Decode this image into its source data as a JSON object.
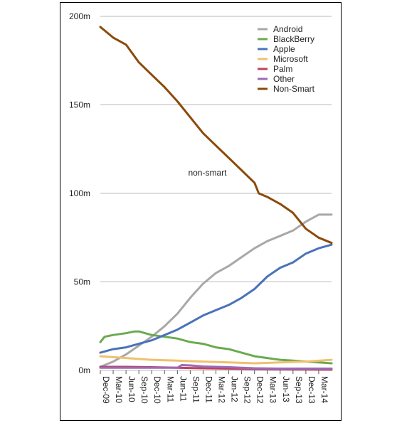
{
  "chart_data": {
    "type": "line",
    "title": "",
    "xlabel": "",
    "ylabel": "",
    "ylim": [
      0,
      200
    ],
    "y_unit_suffix": "m",
    "yticks": [
      0,
      50,
      100,
      150,
      200
    ],
    "ytick_labels": [
      "0m",
      "50m",
      "100m",
      "150m",
      "200m"
    ],
    "grid": true,
    "legend_position": "top-right",
    "x_tick_labels": [
      "Dec-09",
      "Mar-10",
      "Jun-10",
      "Sep-10",
      "Dec-10",
      "Mar-11",
      "Jun-11",
      "Sep-11",
      "Dec-11",
      "Mar-12",
      "Jun-12",
      "Sep-12",
      "Dec-12",
      "Mar-13",
      "Jun-13",
      "Sep-13",
      "Dec-13",
      "Mar-14"
    ],
    "x_tick_months": [
      0,
      3,
      6,
      9,
      12,
      15,
      18,
      21,
      24,
      27,
      30,
      33,
      36,
      39,
      42,
      45,
      48,
      51
    ],
    "x_range_months": [
      0,
      54
    ],
    "annotations": [
      {
        "text": "non-smart",
        "x_month": 25,
        "y": 110
      }
    ],
    "series": [
      {
        "name": "Android",
        "color": "#a8a8a8",
        "points": [
          [
            0,
            2
          ],
          [
            3,
            5
          ],
          [
            6,
            9
          ],
          [
            9,
            14
          ],
          [
            12,
            19
          ],
          [
            15,
            25
          ],
          [
            18,
            32
          ],
          [
            21,
            41
          ],
          [
            24,
            49
          ],
          [
            27,
            55
          ],
          [
            30,
            59
          ],
          [
            33,
            64
          ],
          [
            36,
            69
          ],
          [
            39,
            73
          ],
          [
            42,
            76
          ],
          [
            45,
            79
          ],
          [
            48,
            84
          ],
          [
            51,
            88
          ],
          [
            54,
            88
          ]
        ]
      },
      {
        "name": "BlackBerry",
        "color": "#6aaa4f",
        "points": [
          [
            0,
            16
          ],
          [
            1,
            19
          ],
          [
            3,
            20
          ],
          [
            6,
            21
          ],
          [
            8,
            22
          ],
          [
            9,
            22
          ],
          [
            12,
            20
          ],
          [
            15,
            19
          ],
          [
            18,
            18
          ],
          [
            21,
            16
          ],
          [
            24,
            15
          ],
          [
            27,
            13
          ],
          [
            30,
            12
          ],
          [
            33,
            10
          ],
          [
            36,
            8
          ],
          [
            39,
            7
          ],
          [
            42,
            6
          ],
          [
            45,
            5.5
          ],
          [
            48,
            5
          ],
          [
            51,
            4.5
          ],
          [
            54,
            4
          ]
        ]
      },
      {
        "name": "Apple",
        "color": "#4a72b8",
        "points": [
          [
            0,
            10
          ],
          [
            3,
            12
          ],
          [
            6,
            13
          ],
          [
            9,
            15
          ],
          [
            12,
            17
          ],
          [
            15,
            20
          ],
          [
            18,
            23
          ],
          [
            21,
            27
          ],
          [
            24,
            31
          ],
          [
            27,
            34
          ],
          [
            30,
            37
          ],
          [
            33,
            41
          ],
          [
            36,
            46
          ],
          [
            39,
            53
          ],
          [
            42,
            58
          ],
          [
            45,
            61
          ],
          [
            48,
            66
          ],
          [
            51,
            69
          ],
          [
            54,
            71
          ]
        ]
      },
      {
        "name": "Microsoft",
        "color": "#f0c070",
        "points": [
          [
            0,
            8
          ],
          [
            6,
            7
          ],
          [
            12,
            6
          ],
          [
            18,
            5.5
          ],
          [
            24,
            5
          ],
          [
            30,
            4.5
          ],
          [
            36,
            4
          ],
          [
            42,
            4.5
          ],
          [
            48,
            5
          ],
          [
            54,
            6
          ]
        ]
      },
      {
        "name": "Palm",
        "color": "#c04060",
        "points": [
          [
            0,
            2
          ],
          [
            6,
            2
          ],
          [
            12,
            1.8
          ],
          [
            18,
            1.5
          ],
          [
            24,
            1.2
          ],
          [
            30,
            1
          ],
          [
            36,
            0.8
          ],
          [
            42,
            0.6
          ],
          [
            48,
            0.5
          ],
          [
            54,
            0.4
          ]
        ]
      },
      {
        "name": "Other",
        "color": "#9b6bb5",
        "points": [
          [
            0,
            1.5
          ],
          [
            6,
            1.5
          ],
          [
            12,
            1.5
          ],
          [
            18,
            1.5
          ],
          [
            19,
            3
          ],
          [
            21,
            2.8
          ],
          [
            24,
            2.2
          ],
          [
            27,
            2
          ],
          [
            30,
            1.8
          ],
          [
            33,
            1.5
          ],
          [
            36,
            1.2
          ],
          [
            42,
            1
          ],
          [
            48,
            1
          ],
          [
            54,
            1
          ]
        ]
      },
      {
        "name": "Non-Smart",
        "color": "#8b4a0a",
        "points": [
          [
            0,
            194
          ],
          [
            3,
            188
          ],
          [
            6,
            184
          ],
          [
            9,
            174
          ],
          [
            12,
            167
          ],
          [
            15,
            160
          ],
          [
            18,
            152
          ],
          [
            21,
            143
          ],
          [
            24,
            134
          ],
          [
            27,
            127
          ],
          [
            30,
            120
          ],
          [
            33,
            113
          ],
          [
            36,
            106
          ],
          [
            37,
            100
          ],
          [
            39,
            98
          ],
          [
            42,
            94
          ],
          [
            45,
            89
          ],
          [
            48,
            80
          ],
          [
            51,
            75
          ],
          [
            54,
            72
          ]
        ]
      }
    ]
  }
}
